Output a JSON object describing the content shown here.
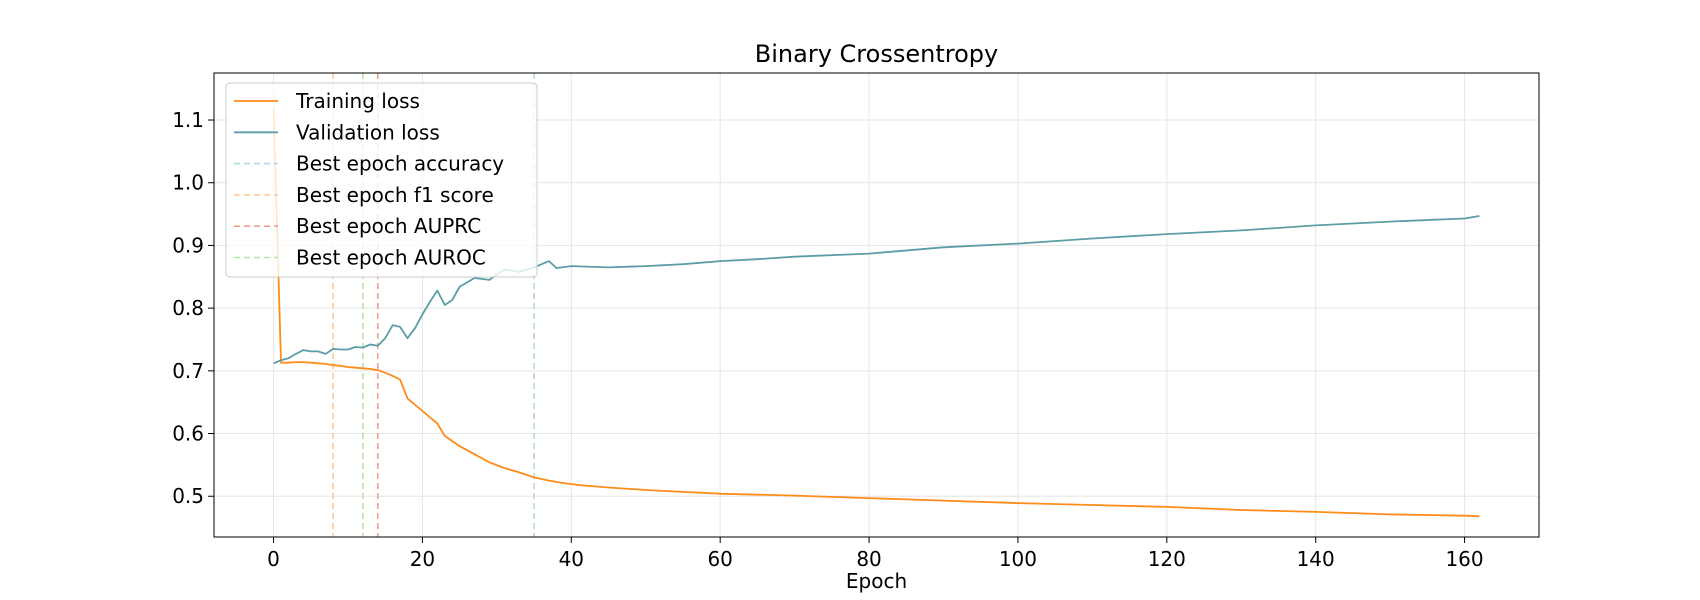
{
  "chart_data": {
    "type": "line",
    "title": "Binary Crossentropy",
    "xlabel": "Epoch",
    "ylabel": "",
    "xlim": [
      -8,
      170
    ],
    "ylim": [
      0.435,
      1.175
    ],
    "xticks": [
      0,
      20,
      40,
      60,
      80,
      100,
      120,
      140,
      160
    ],
    "yticks": [
      0.5,
      0.6,
      0.7,
      0.8,
      0.9,
      1.0,
      1.1
    ],
    "ytick_labels": [
      "0.5",
      "0.6",
      "0.7",
      "0.8",
      "0.9",
      "1.0",
      "1.1"
    ],
    "grid": true,
    "legend_position": "upper-left",
    "series": [
      {
        "name": "Training loss",
        "color": "#ff8c1a",
        "x": [
          0,
          1,
          2,
          3,
          4,
          5,
          6,
          7,
          8,
          9,
          10,
          11,
          12,
          13,
          14,
          15,
          16,
          17,
          18,
          20,
          22,
          23,
          25,
          27,
          29,
          31,
          33,
          35,
          37,
          39,
          41,
          45,
          50,
          55,
          60,
          70,
          80,
          90,
          100,
          110,
          120,
          130,
          140,
          150,
          160,
          162
        ],
        "y": [
          1.12,
          0.713,
          0.713,
          0.714,
          0.714,
          0.713,
          0.712,
          0.711,
          0.709,
          0.708,
          0.706,
          0.705,
          0.704,
          0.703,
          0.701,
          0.697,
          0.692,
          0.686,
          0.656,
          0.636,
          0.616,
          0.596,
          0.58,
          0.567,
          0.554,
          0.545,
          0.538,
          0.53,
          0.525,
          0.521,
          0.518,
          0.514,
          0.51,
          0.507,
          0.504,
          0.501,
          0.497,
          0.493,
          0.489,
          0.486,
          0.483,
          0.478,
          0.475,
          0.471,
          0.469,
          0.468
        ]
      },
      {
        "name": "Validation loss",
        "color": "#5b9ea6",
        "x": [
          0,
          1,
          2,
          3,
          4,
          5,
          6,
          7,
          8,
          9,
          10,
          11,
          12,
          13,
          14,
          15,
          16,
          17,
          18,
          19,
          20,
          21,
          22,
          23,
          24,
          25,
          27,
          29,
          31,
          33,
          35,
          37,
          38,
          40,
          45,
          50,
          55,
          60,
          65,
          70,
          80,
          90,
          100,
          110,
          120,
          130,
          140,
          150,
          160,
          162
        ],
        "y": [
          0.712,
          0.717,
          0.72,
          0.727,
          0.733,
          0.731,
          0.731,
          0.727,
          0.735,
          0.734,
          0.734,
          0.738,
          0.737,
          0.742,
          0.74,
          0.752,
          0.773,
          0.77,
          0.752,
          0.768,
          0.79,
          0.81,
          0.828,
          0.805,
          0.813,
          0.834,
          0.848,
          0.845,
          0.862,
          0.858,
          0.865,
          0.875,
          0.864,
          0.867,
          0.865,
          0.867,
          0.87,
          0.875,
          0.878,
          0.882,
          0.887,
          0.897,
          0.903,
          0.911,
          0.918,
          0.924,
          0.932,
          0.938,
          0.943,
          0.947
        ]
      }
    ],
    "vlines": [
      {
        "name": "Best epoch accuracy",
        "x": 35,
        "color": "#b5d8e3"
      },
      {
        "name": "Best epoch f1 score",
        "x": 8,
        "color": "#ffc896"
      },
      {
        "name": "Best epoch AUPRC",
        "x": 14,
        "color": "#f0a08c"
      },
      {
        "name": "Best epoch AUROC",
        "x": 12,
        "color": "#b4e6a0"
      }
    ],
    "legend": [
      "Training loss",
      "Validation loss",
      "Best epoch accuracy",
      "Best epoch f1 score",
      "Best epoch AUPRC",
      "Best epoch AUROC"
    ]
  }
}
